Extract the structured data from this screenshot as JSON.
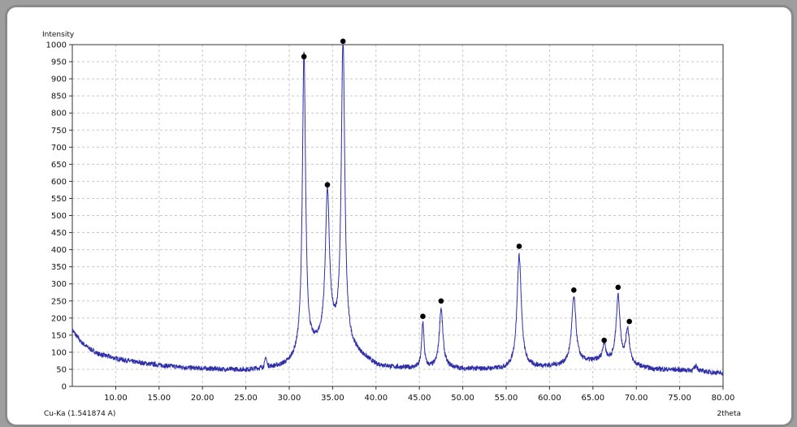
{
  "chart_data": {
    "type": "line",
    "title": "",
    "ylabel": "Intensity",
    "xlabel": "2theta",
    "source_label": "Cu-Ka (1.541874 A)",
    "xlim": [
      5,
      80
    ],
    "ylim": [
      0,
      1000
    ],
    "x_ticks": [
      10,
      15,
      20,
      25,
      30,
      35,
      40,
      45,
      50,
      55,
      60,
      65,
      70,
      75,
      80
    ],
    "x_tick_labels": [
      "10.00",
      "15.00",
      "20.00",
      "25.00",
      "30.00",
      "35.00",
      "40.00",
      "45.00",
      "50.00",
      "55.00",
      "60.00",
      "65.00",
      "70.00",
      "75.00",
      "80.00"
    ],
    "y_ticks": [
      0,
      50,
      100,
      150,
      200,
      250,
      300,
      350,
      400,
      450,
      500,
      550,
      600,
      650,
      700,
      750,
      800,
      850,
      900,
      950,
      1000
    ],
    "grid": true,
    "line_color": "#2e2ea8",
    "marker_color": "#000000",
    "background": "#8a6a6a",
    "baseline": [
      [
        5,
        165
      ],
      [
        6,
        130
      ],
      [
        7,
        110
      ],
      [
        8,
        95
      ],
      [
        10,
        82
      ],
      [
        12,
        72
      ],
      [
        15,
        62
      ],
      [
        18,
        55
      ],
      [
        20,
        52
      ],
      [
        22,
        50
      ],
      [
        25,
        48
      ],
      [
        27,
        52
      ],
      [
        29,
        58
      ],
      [
        30,
        65
      ],
      [
        31,
        85
      ],
      [
        35,
        140
      ],
      [
        40,
        62
      ],
      [
        42,
        55
      ],
      [
        45,
        52
      ],
      [
        48,
        55
      ],
      [
        50,
        50
      ],
      [
        55,
        50
      ],
      [
        58,
        55
      ],
      [
        60,
        58
      ],
      [
        62,
        62
      ],
      [
        64,
        70
      ],
      [
        66,
        75
      ],
      [
        70,
        58
      ],
      [
        72,
        50
      ],
      [
        75,
        48
      ],
      [
        77,
        45
      ],
      [
        80,
        38
      ]
    ],
    "peaks": [
      {
        "x": 31.7,
        "height": 880,
        "width": 0.22
      },
      {
        "x": 34.4,
        "height": 430,
        "width": 0.28
      },
      {
        "x": 36.2,
        "height": 890,
        "width": 0.24
      },
      {
        "x": 45.4,
        "height": 135,
        "width": 0.16
      },
      {
        "x": 47.5,
        "height": 172,
        "width": 0.25
      },
      {
        "x": 56.5,
        "height": 330,
        "width": 0.3
      },
      {
        "x": 62.8,
        "height": 195,
        "width": 0.3
      },
      {
        "x": 66.3,
        "height": 50,
        "width": 0.2
      },
      {
        "x": 67.9,
        "height": 195,
        "width": 0.27
      },
      {
        "x": 69.0,
        "height": 100,
        "width": 0.25
      },
      {
        "x": 27.3,
        "height": 30,
        "width": 0.12
      },
      {
        "x": 76.9,
        "height": 15,
        "width": 0.2
      }
    ],
    "markers": [
      {
        "x": 31.7,
        "y": 965
      },
      {
        "x": 34.4,
        "y": 590
      },
      {
        "x": 36.2,
        "y": 1010
      },
      {
        "x": 45.4,
        "y": 205
      },
      {
        "x": 47.5,
        "y": 250
      },
      {
        "x": 56.5,
        "y": 410
      },
      {
        "x": 62.8,
        "y": 282
      },
      {
        "x": 66.3,
        "y": 135
      },
      {
        "x": 67.9,
        "y": 290
      },
      {
        "x": 69.2,
        "y": 190
      }
    ]
  }
}
